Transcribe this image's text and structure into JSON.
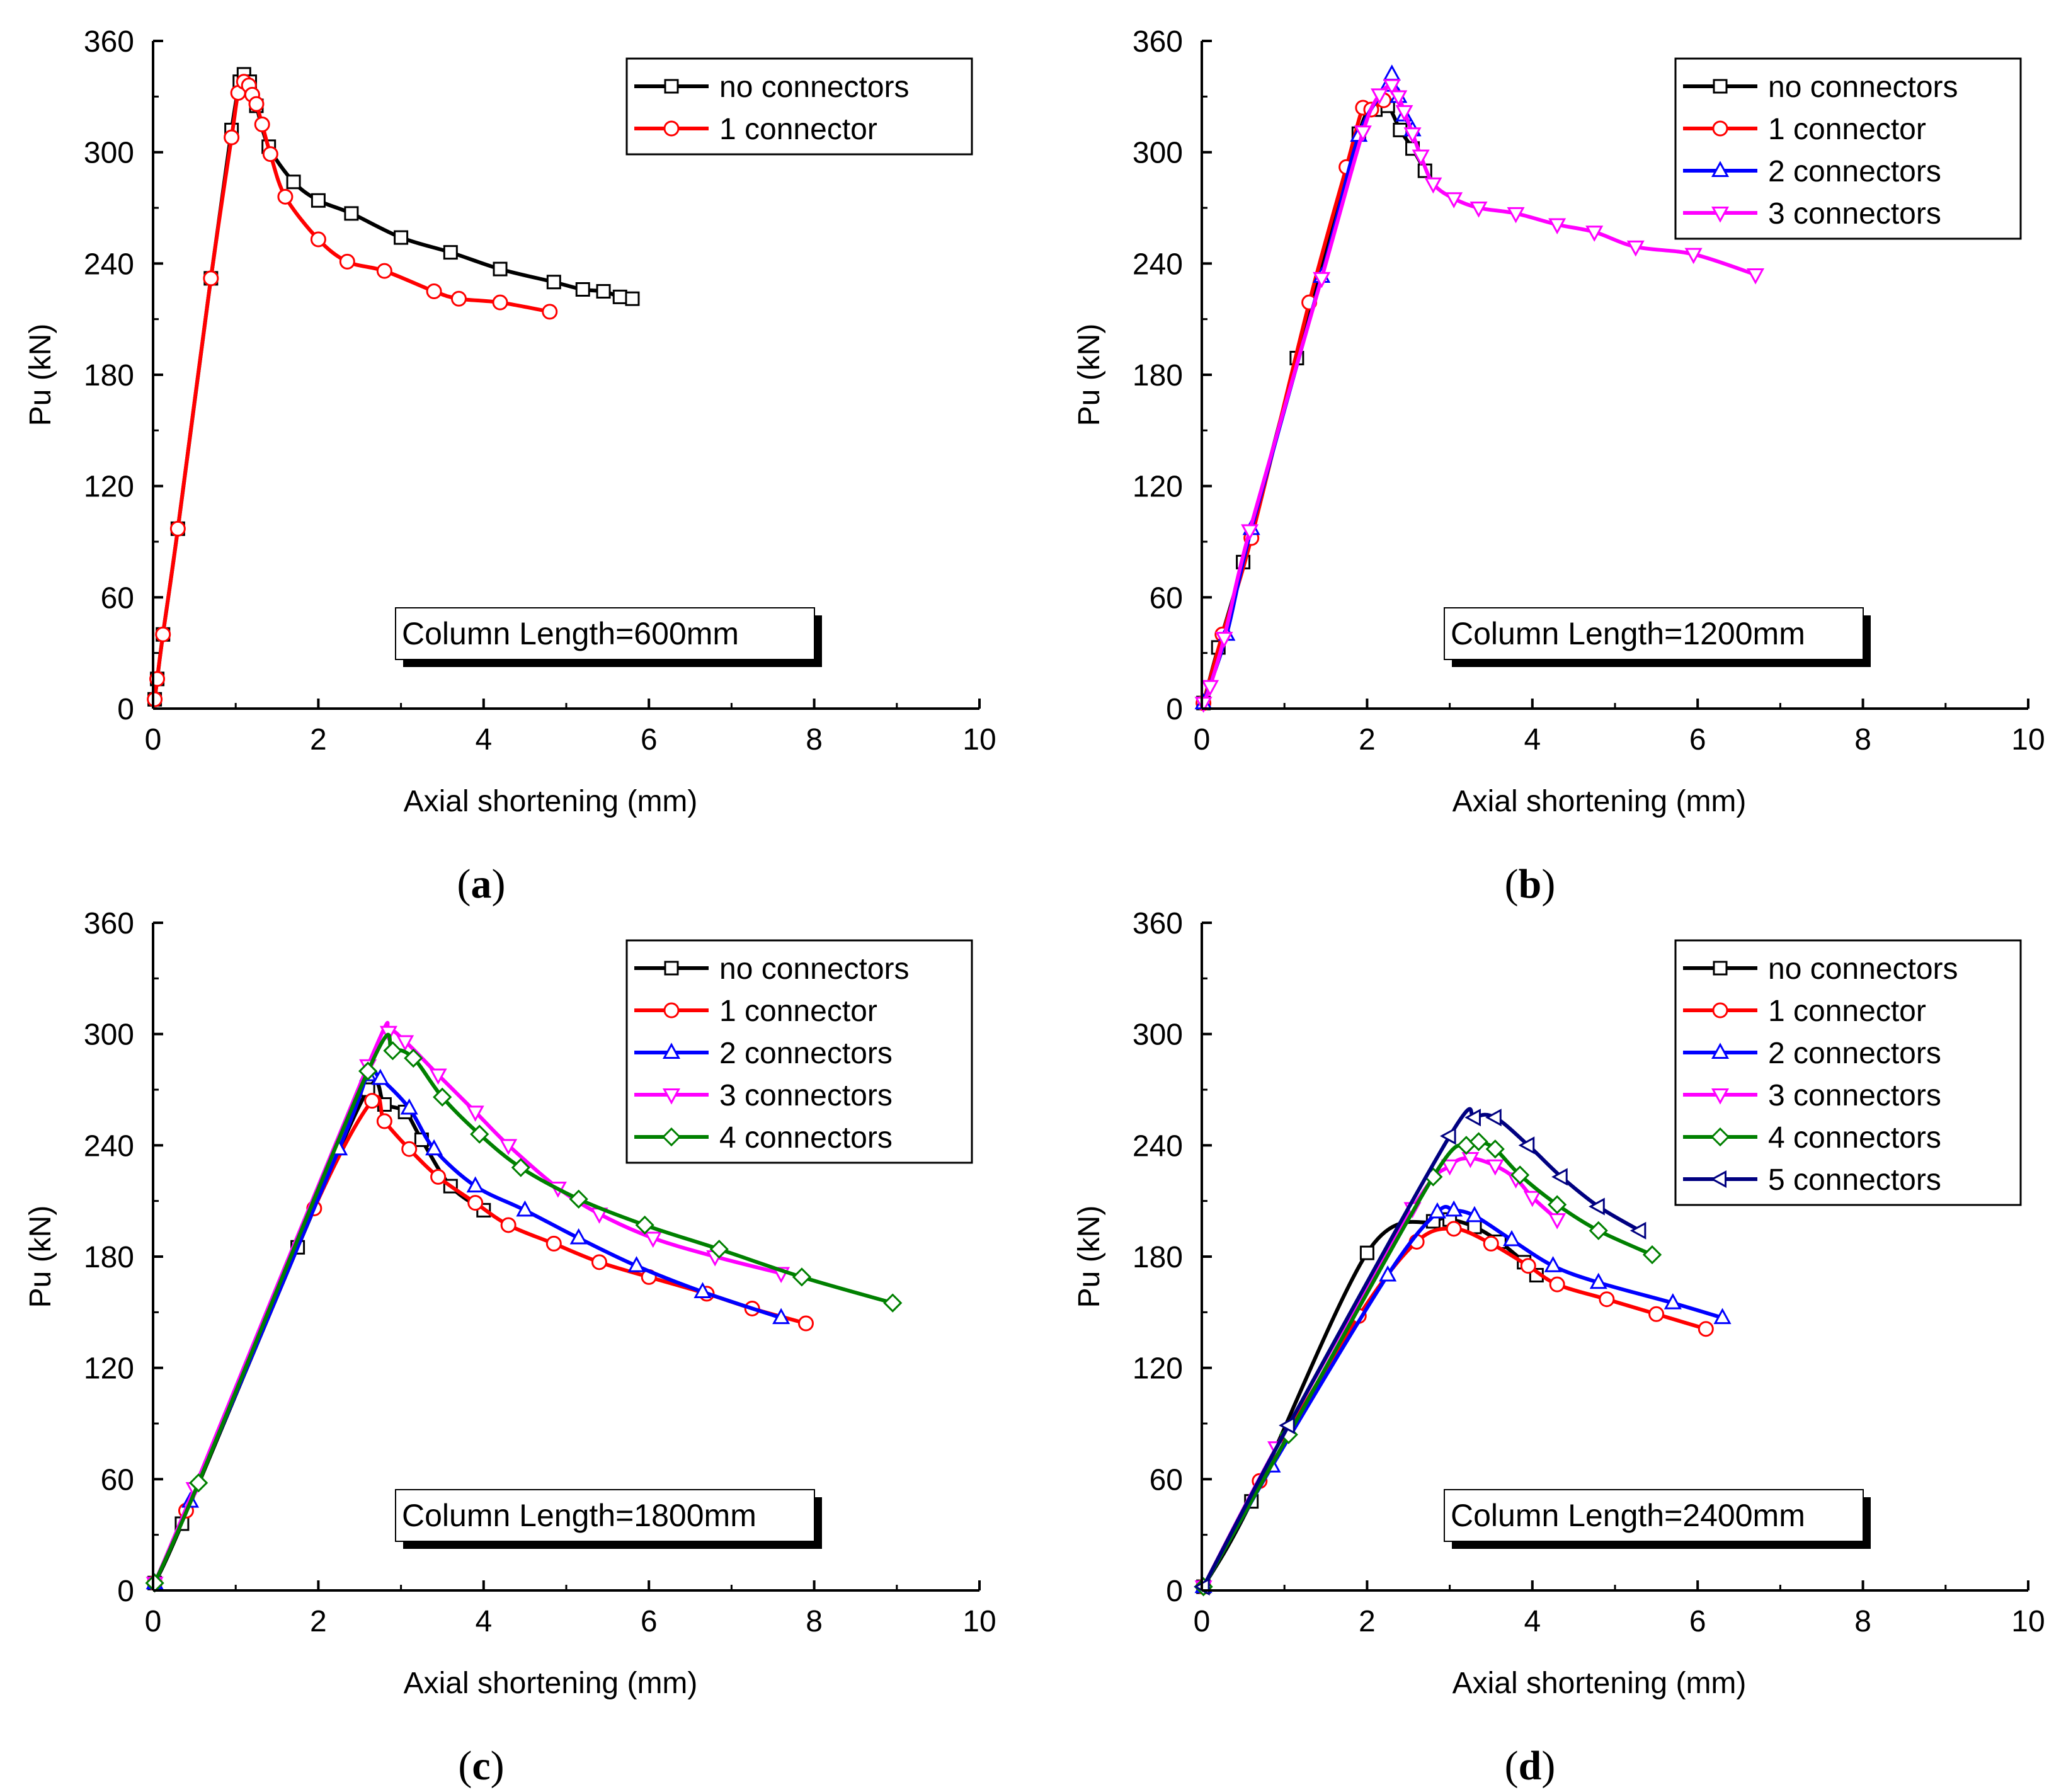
{
  "chart_data": [
    {
      "type": "line",
      "panel": "a",
      "caption": "(a)",
      "caption_letter": "a",
      "xlabel": "Axial shortening (mm)",
      "ylabel": "Pu (kN)",
      "xlim": [
        0,
        10
      ],
      "ylim": [
        0,
        360
      ],
      "xticks": [
        0,
        2,
        4,
        6,
        8,
        10
      ],
      "yticks": [
        0,
        60,
        120,
        180,
        240,
        300,
        360
      ],
      "annotation": "Column Length=600mm",
      "legend_position": "top-right",
      "series": [
        {
          "name": "no connectors",
          "color": "#000000",
          "marker": "square",
          "points": [
            [
              0.02,
              5
            ],
            [
              0.05,
              16
            ],
            [
              0.12,
              40
            ],
            [
              0.3,
              97
            ],
            [
              0.7,
              232
            ],
            [
              0.95,
              312
            ],
            [
              1.05,
              338
            ],
            [
              1.1,
              342
            ],
            [
              1.17,
              338
            ],
            [
              1.25,
              325
            ],
            [
              1.4,
              303
            ],
            [
              1.7,
              284
            ],
            [
              2.0,
              274
            ],
            [
              2.4,
              267
            ],
            [
              3.0,
              254
            ],
            [
              3.6,
              246
            ],
            [
              4.2,
              237
            ],
            [
              4.85,
              230
            ],
            [
              5.2,
              226
            ],
            [
              5.45,
              225
            ],
            [
              5.65,
              222
            ],
            [
              5.8,
              221
            ]
          ]
        },
        {
          "name": "1 connector",
          "color": "#ff0000",
          "marker": "circle",
          "points": [
            [
              0.02,
              5
            ],
            [
              0.05,
              16
            ],
            [
              0.12,
              40
            ],
            [
              0.3,
              97
            ],
            [
              0.7,
              232
            ],
            [
              0.95,
              308
            ],
            [
              1.03,
              332
            ],
            [
              1.1,
              338
            ],
            [
              1.16,
              336
            ],
            [
              1.2,
              331
            ],
            [
              1.25,
              326
            ],
            [
              1.32,
              315
            ],
            [
              1.42,
              299
            ],
            [
              1.6,
              276
            ],
            [
              2.0,
              253
            ],
            [
              2.35,
              241
            ],
            [
              2.8,
              236
            ],
            [
              3.4,
              225
            ],
            [
              3.7,
              221
            ],
            [
              4.2,
              219
            ],
            [
              4.8,
              214
            ]
          ]
        }
      ]
    },
    {
      "type": "line",
      "panel": "b",
      "caption": "(b)",
      "caption_letter": "b",
      "xlabel": "Axial shortening (mm)",
      "ylabel": "Pu (kN)",
      "xlim": [
        0,
        10
      ],
      "ylim": [
        0,
        360
      ],
      "xticks": [
        0,
        2,
        4,
        6,
        8,
        10
      ],
      "yticks": [
        0,
        60,
        120,
        180,
        240,
        300,
        360
      ],
      "annotation": "Column Length=1200mm",
      "legend_position": "top-right",
      "series": [
        {
          "name": "no connectors",
          "color": "#000000",
          "marker": "square",
          "points": [
            [
              0.02,
              3
            ],
            [
              0.2,
              33
            ],
            [
              0.5,
              79
            ],
            [
              1.15,
              189
            ],
            [
              1.9,
              310
            ],
            [
              2.1,
              323
            ],
            [
              2.25,
              325
            ],
            [
              2.4,
              312
            ],
            [
              2.55,
              302
            ],
            [
              2.7,
              290
            ]
          ]
        },
        {
          "name": "1 connector",
          "color": "#ff0000",
          "marker": "circle",
          "points": [
            [
              0.02,
              3
            ],
            [
              0.25,
              40
            ],
            [
              0.6,
              92
            ],
            [
              1.3,
              219
            ],
            [
              1.75,
              292
            ],
            [
              1.95,
              324
            ],
            [
              2.05,
              323
            ],
            [
              2.2,
              328
            ]
          ]
        },
        {
          "name": "2 connectors",
          "color": "#0000ff",
          "marker": "triangle-up",
          "points": [
            [
              0.02,
              3
            ],
            [
              0.3,
              40
            ],
            [
              0.6,
              97
            ],
            [
              1.45,
              233
            ],
            [
              1.9,
              309
            ],
            [
              2.25,
              336
            ],
            [
              2.3,
              342
            ],
            [
              2.38,
              330
            ],
            [
              2.45,
              320
            ],
            [
              2.55,
              312
            ]
          ]
        },
        {
          "name": "3 connectors",
          "color": "#ff00ff",
          "marker": "triangle-down",
          "points": [
            [
              0.02,
              3
            ],
            [
              0.1,
              12
            ],
            [
              0.27,
              38
            ],
            [
              0.58,
              96
            ],
            [
              1.45,
              232
            ],
            [
              1.95,
              311
            ],
            [
              2.15,
              331
            ],
            [
              2.3,
              336
            ],
            [
              2.38,
              330
            ],
            [
              2.45,
              322
            ],
            [
              2.55,
              310
            ],
            [
              2.65,
              298
            ],
            [
              2.8,
              283
            ],
            [
              3.05,
              275
            ],
            [
              3.35,
              270
            ],
            [
              3.8,
              267
            ],
            [
              4.3,
              261
            ],
            [
              4.75,
              257
            ],
            [
              5.25,
              249
            ],
            [
              5.95,
              245
            ],
            [
              6.7,
              234
            ]
          ]
        }
      ]
    },
    {
      "type": "line",
      "panel": "c",
      "caption": "(c)",
      "caption_letter": "c",
      "xlabel": "Axial shortening (mm)",
      "ylabel": "Pu (kN)",
      "xlim": [
        0,
        10
      ],
      "ylim": [
        0,
        360
      ],
      "xticks": [
        0,
        2,
        4,
        6,
        8,
        10
      ],
      "yticks": [
        0,
        60,
        120,
        180,
        240,
        300,
        360
      ],
      "annotation": "Column Length=1800mm",
      "legend_position": "top-right",
      "series": [
        {
          "name": "no connectors",
          "color": "#000000",
          "marker": "square",
          "points": [
            [
              0.02,
              4
            ],
            [
              0.35,
              36
            ],
            [
              1.75,
              185
            ],
            [
              2.6,
              270
            ],
            [
              2.8,
              262
            ],
            [
              3.05,
              258
            ],
            [
              3.25,
              243
            ],
            [
              3.6,
              218
            ],
            [
              4.0,
              205
            ]
          ]
        },
        {
          "name": "1 connector",
          "color": "#ff0000",
          "marker": "circle",
          "points": [
            [
              0.02,
              4
            ],
            [
              0.4,
              43
            ],
            [
              1.95,
              206
            ],
            [
              2.65,
              264
            ],
            [
              2.8,
              253
            ],
            [
              3.1,
              238
            ],
            [
              3.45,
              223
            ],
            [
              3.9,
              209
            ],
            [
              4.3,
              197
            ],
            [
              4.85,
              187
            ],
            [
              5.4,
              177
            ],
            [
              6.0,
              169
            ],
            [
              6.7,
              160
            ],
            [
              7.25,
              152
            ],
            [
              7.9,
              144
            ]
          ]
        },
        {
          "name": "2 connectors",
          "color": "#0000ff",
          "marker": "triangle-up",
          "points": [
            [
              0.02,
              4
            ],
            [
              0.45,
              48
            ],
            [
              2.25,
              238
            ],
            [
              2.6,
              278
            ],
            [
              2.75,
              276
            ],
            [
              3.1,
              260
            ],
            [
              3.4,
              238
            ],
            [
              3.9,
              218
            ],
            [
              4.5,
              205
            ],
            [
              5.15,
              190
            ],
            [
              5.85,
              175
            ],
            [
              6.65,
              161
            ],
            [
              7.6,
              147
            ]
          ]
        },
        {
          "name": "3 connectors",
          "color": "#ff00ff",
          "marker": "triangle-down",
          "points": [
            [
              0.02,
              4
            ],
            [
              0.5,
              55
            ],
            [
              2.6,
              283
            ],
            [
              2.85,
              301
            ],
            [
              3.05,
              296
            ],
            [
              3.45,
              278
            ],
            [
              3.9,
              258
            ],
            [
              4.3,
              240
            ],
            [
              4.9,
              217
            ],
            [
              5.4,
              203
            ],
            [
              6.05,
              190
            ],
            [
              6.8,
              180
            ],
            [
              7.6,
              171
            ]
          ]
        },
        {
          "name": "4 connectors",
          "color": "#008000",
          "marker": "diamond",
          "points": [
            [
              0.02,
              4
            ],
            [
              0.55,
              58
            ],
            [
              2.6,
              280
            ],
            [
              2.9,
              291
            ],
            [
              3.15,
              287
            ],
            [
              3.5,
              266
            ],
            [
              3.95,
              246
            ],
            [
              4.45,
              228
            ],
            [
              5.15,
              211
            ],
            [
              5.95,
              197
            ],
            [
              6.85,
              184
            ],
            [
              7.85,
              169
            ],
            [
              8.95,
              155
            ]
          ]
        }
      ]
    },
    {
      "type": "line",
      "panel": "d",
      "caption": "(d)",
      "caption_letter": "d",
      "xlabel": "Axial shortening (mm)",
      "ylabel": "Pu (kN)",
      "xlim": [
        0,
        10
      ],
      "ylim": [
        0,
        360
      ],
      "xticks": [
        0,
        2,
        4,
        6,
        8,
        10
      ],
      "yticks": [
        0,
        60,
        120,
        180,
        240,
        300,
        360
      ],
      "annotation": "Column Length=2400mm",
      "legend_position": "top-right",
      "series": [
        {
          "name": "no connectors",
          "color": "#000000",
          "marker": "square",
          "points": [
            [
              0.02,
              2
            ],
            [
              0.6,
              48
            ],
            [
              2.0,
              182
            ],
            [
              2.8,
              199
            ],
            [
              3.0,
              200
            ],
            [
              3.3,
              196
            ],
            [
              3.6,
              188
            ],
            [
              3.9,
              177
            ],
            [
              4.05,
              170
            ]
          ]
        },
        {
          "name": "1 connector",
          "color": "#ff0000",
          "marker": "circle",
          "points": [
            [
              0.02,
              2
            ],
            [
              0.7,
              59
            ],
            [
              1.9,
              148
            ],
            [
              2.6,
              188
            ],
            [
              3.05,
              195
            ],
            [
              3.5,
              187
            ],
            [
              3.95,
              175
            ],
            [
              4.3,
              165
            ],
            [
              4.9,
              157
            ],
            [
              5.5,
              149
            ],
            [
              6.1,
              141
            ]
          ]
        },
        {
          "name": "2 connectors",
          "color": "#0000ff",
          "marker": "triangle-up",
          "points": [
            [
              0.02,
              2
            ],
            [
              0.85,
              67
            ],
            [
              2.25,
              170
            ],
            [
              2.85,
              204
            ],
            [
              3.05,
              205
            ],
            [
              3.3,
              202
            ],
            [
              3.75,
              189
            ],
            [
              4.25,
              175
            ],
            [
              4.8,
              166
            ],
            [
              5.7,
              155
            ],
            [
              6.3,
              147
            ]
          ]
        },
        {
          "name": "3 connectors",
          "color": "#ff00ff",
          "marker": "triangle-down",
          "points": [
            [
              0.02,
              2
            ],
            [
              0.9,
              77
            ],
            [
              2.55,
              206
            ],
            [
              3.0,
              229
            ],
            [
              3.25,
              233
            ],
            [
              3.55,
              229
            ],
            [
              3.8,
              222
            ],
            [
              4.0,
              212
            ],
            [
              4.3,
              200
            ]
          ]
        },
        {
          "name": "4 connectors",
          "color": "#008000",
          "marker": "diamond",
          "points": [
            [
              0.02,
              2
            ],
            [
              1.05,
              84
            ],
            [
              2.8,
              223
            ],
            [
              3.2,
              240
            ],
            [
              3.35,
              242
            ],
            [
              3.55,
              238
            ],
            [
              3.85,
              224
            ],
            [
              4.3,
              208
            ],
            [
              4.8,
              194
            ],
            [
              5.45,
              181
            ]
          ]
        },
        {
          "name": "5 connectors",
          "color": "#000080",
          "marker": "triangle-left",
          "points": [
            [
              0.02,
              2
            ],
            [
              1.05,
              89
            ],
            [
              3.0,
              245
            ],
            [
              3.3,
              255
            ],
            [
              3.55,
              255
            ],
            [
              3.95,
              240
            ],
            [
              4.35,
              223
            ],
            [
              4.8,
              207
            ],
            [
              5.3,
              194
            ]
          ]
        }
      ]
    }
  ]
}
